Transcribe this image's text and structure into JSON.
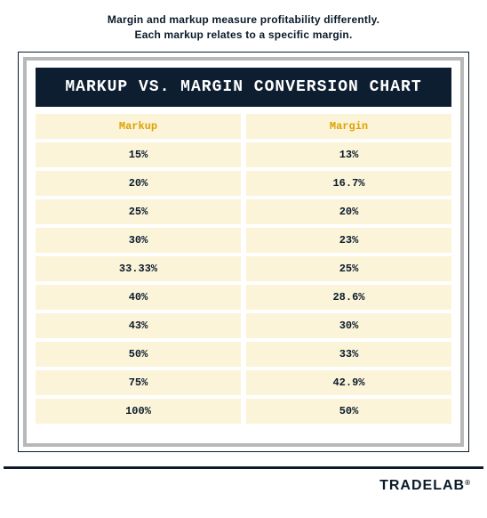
{
  "subtitle_line1": "Margin and markup measure profitability differently.",
  "subtitle_line2": "Each markup relates to a specific margin.",
  "chart": {
    "title": "MARKUP VS. MARGIN CONVERSION CHART",
    "columns": [
      "Markup",
      "Margin"
    ],
    "rows": [
      [
        "15%",
        "13%"
      ],
      [
        "20%",
        "16.7%"
      ],
      [
        "25%",
        "20%"
      ],
      [
        "30%",
        "23%"
      ],
      [
        "33.33%",
        "25%"
      ],
      [
        "40%",
        "28.6%"
      ],
      [
        "43%",
        "30%"
      ],
      [
        "50%",
        "33%"
      ],
      [
        "75%",
        "42.9%"
      ],
      [
        "100%",
        "50%"
      ]
    ],
    "header_row_bg": "#fbf4d9",
    "row_bg": "#fbf4d9",
    "header_text_color": "#dca200",
    "cell_text_color": "#0a1a2a",
    "title_bg": "#0c1e30",
    "title_text_color": "#ffffff",
    "outer_border_color": "#0a1a2a",
    "inner_border_color": "#b8b8b8",
    "font_family_title": "Courier New",
    "font_family_cells": "Courier New",
    "title_fontsize": 18,
    "cell_fontsize": 12
  },
  "brand": "TRADELAB",
  "brand_suffix": "®",
  "colors": {
    "page_bg": "#ffffff",
    "accent_dark": "#0a1a2a",
    "accent_gold": "#dca200",
    "row_cream": "#fbf4d9",
    "border_gray": "#b8b8b8"
  }
}
